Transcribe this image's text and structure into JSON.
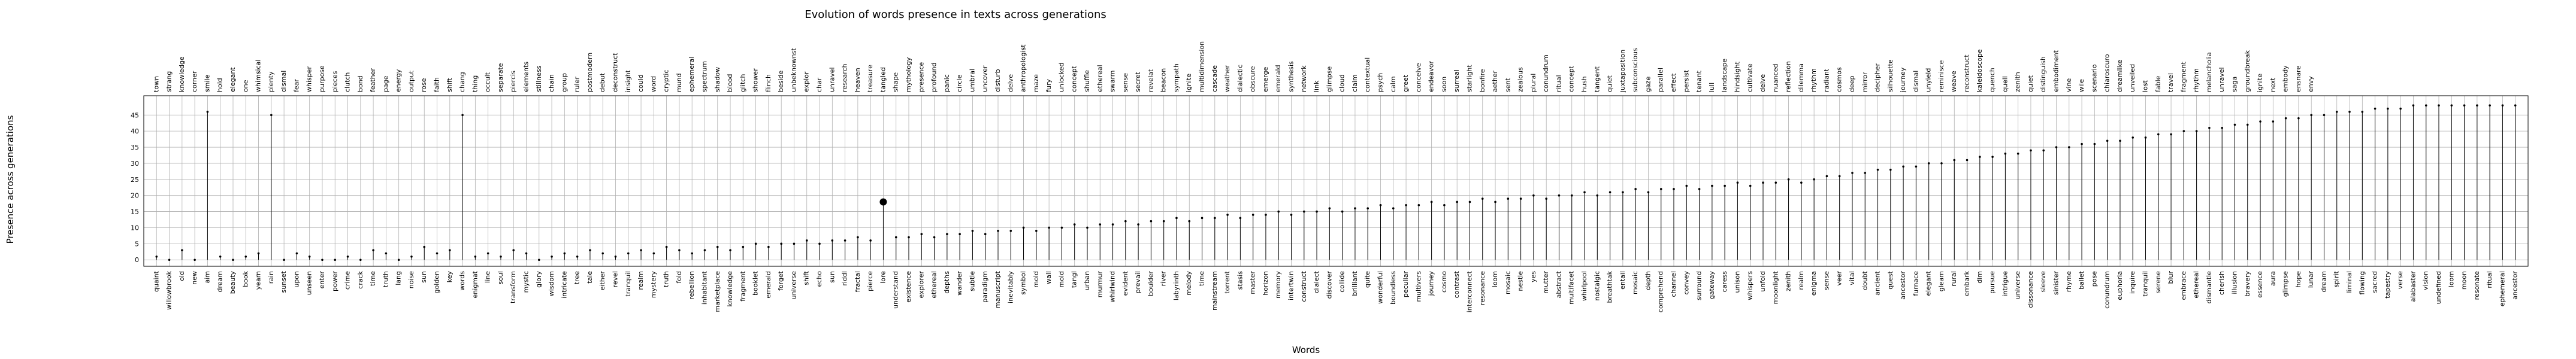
{
  "chart_data": {
    "type": "scatter",
    "title": "Evolution of words presence in texts across generations",
    "xlabel": "Words",
    "ylabel": "Presence across generations",
    "ylim": [
      -2,
      51
    ],
    "yticks": [
      0,
      5,
      10,
      15,
      20,
      25,
      30,
      35,
      40,
      45
    ],
    "grid": true,
    "legend": "none",
    "top_words": [
      "town",
      "strang",
      "knowledge",
      "corner",
      "smile",
      "hold",
      "elegant",
      "one",
      "whimsical",
      "plenty",
      "dismal",
      "fear",
      "whisper",
      "purpose",
      "pieces",
      "clutch",
      "bond",
      "feather",
      "page",
      "energy",
      "output",
      "rose",
      "faith",
      "shift",
      "chang",
      "thing",
      "occult",
      "separate",
      "piercis",
      "elements",
      "stillness",
      "chain",
      "group",
      "ruler",
      "postmodern",
      "debut",
      "deconstruct",
      "insight",
      "could",
      "word",
      "cryptic",
      "mund",
      "ephemeral",
      "spectrum",
      "shadow",
      "blood",
      "glitch",
      "shower",
      "flinch",
      "beside",
      "unbeknownst",
      "explor",
      "char",
      "unravel",
      "research",
      "heaven",
      "treasure",
      "tangled",
      "shape",
      "mythology",
      "presence",
      "profound",
      "panic",
      "circle",
      "umbral",
      "uncover",
      "disturb",
      "delve",
      "anthropologist",
      "maze",
      "fury",
      "unlocked",
      "concept",
      "shuffle",
      "ethereal",
      "swarm",
      "sense",
      "secret",
      "revelat",
      "beacon",
      "sympath",
      "ignite",
      "multidimension",
      "cascade",
      "weather",
      "dialectic",
      "obscure",
      "emerge",
      "emerald",
      "synthesis",
      "network",
      "link",
      "glimpse",
      "cloud",
      "claim",
      "contextual",
      "psych",
      "calm",
      "greet",
      "conceive",
      "endeavor",
      "soon",
      "surreal",
      "starlight",
      "bonfire",
      "aether",
      "sent",
      "zealous",
      "plural",
      "conundrum",
      "ritual",
      "concept",
      "hush",
      "tangent",
      "quiet",
      "juxtaposition",
      "subconscious",
      "gaze",
      "parallel",
      "effect",
      "persist",
      "tenant",
      "lull",
      "landscape",
      "hindsight",
      "cultivate",
      "delve",
      "nuanced",
      "reflection",
      "dilemma",
      "rhythm",
      "radiant",
      "cosmos",
      "deep",
      "mirror",
      "decipher",
      "silhouette",
      "journey",
      "dismal",
      "unyield",
      "reminisce",
      "weave",
      "reconstruct",
      "kaleidoscope",
      "quench",
      "quell",
      "zenith",
      "quiet",
      "distinguish",
      "embodiment",
      "vine",
      "wile",
      "scenario",
      "chiaroscuro",
      "dreamlike",
      "unveiled",
      "lost",
      "fable",
      "travel",
      "fragment",
      "rhythm",
      "melancholia",
      "unravel",
      "saga",
      "groundbreak",
      "ignite",
      "next",
      "embody",
      "ensnare",
      "envy"
    ],
    "bottom_words": [
      "quaint",
      "willowbrook",
      "old",
      "new",
      "aim",
      "dream",
      "beauty",
      "book",
      "yearn",
      "rain",
      "sunset",
      "upon",
      "unseen",
      "enter",
      "power",
      "crime",
      "crack",
      "time",
      "truth",
      "lang",
      "noise",
      "sun",
      "golden",
      "key",
      "words",
      "enigmat",
      "line",
      "soul",
      "transform",
      "mystic",
      "glory",
      "wisdom",
      "intricate",
      "tree",
      "tale",
      "either",
      "revel",
      "tranquil",
      "realm",
      "mystery",
      "truth",
      "fold",
      "rebellion",
      "inhabitant",
      "marketplace",
      "knowledge",
      "fragment",
      "booklet",
      "emerald",
      "forget",
      "universe",
      "shift",
      "echo",
      "sun",
      "riddl",
      "fractal",
      "pierce",
      "lore",
      "understand",
      "existence",
      "explorer",
      "ethereal",
      "depths",
      "wander",
      "subtle",
      "paradigm",
      "manuscript",
      "inevitably",
      "symbol",
      "mold",
      "wall",
      "mold",
      "tangl",
      "urban",
      "murmur",
      "whirlwind",
      "evident",
      "prevail",
      "boulder",
      "river",
      "labyrinth",
      "melody",
      "time",
      "mainstream",
      "torrent",
      "stasis",
      "master",
      "horizon",
      "memory",
      "intertwin",
      "construct",
      "dialect",
      "discover",
      "collide",
      "brilliant",
      "quite",
      "wonderful",
      "boundless",
      "peculiar",
      "multivers",
      "journey",
      "cosmo",
      "contrast",
      "interconnect",
      "resonance",
      "loom",
      "mosaic",
      "nestle",
      "yes",
      "mutter",
      "abstract",
      "multifacet",
      "whirlpool",
      "nostalgic",
      "breathtak",
      "entail",
      "mosaic",
      "depth",
      "comprehend",
      "channel",
      "convey",
      "surround",
      "gateway",
      "caress",
      "unison",
      "whispers",
      "unfold",
      "moonlight",
      "zenith",
      "realm",
      "enigma",
      "sense",
      "veer",
      "vital",
      "doubt",
      "ancient",
      "quest",
      "ancestor",
      "furnace",
      "elegant",
      "gleam",
      "rural",
      "embark",
      "dim",
      "pursue",
      "intrigue",
      "universe",
      "dissonance",
      "sleeve",
      "sinister",
      "rhyme",
      "ballet",
      "pose",
      "conundrum",
      "euphoria",
      "inquire",
      "tranquil",
      "serene",
      "blur",
      "embrace",
      "ethereal",
      "dismantle",
      "cherish",
      "illusion",
      "bravery",
      "essence",
      "aura",
      "glimpse",
      "hope",
      "lunar",
      "dream",
      "spirit",
      "liminal",
      "flowing",
      "sacred",
      "tapestry",
      "verse",
      "alabaster",
      "vision",
      "undefined",
      "loom",
      "moon",
      "resonate",
      "ritual",
      "ephemeral",
      "ancestor",
      "dwelling",
      "echo",
      "quiet",
      "forest",
      "shadow",
      "harmony"
    ],
    "series": [
      {
        "name": "",
        "values": [
          [
            1,
            1
          ],
          [
            2,
            0
          ],
          [
            3,
            3
          ],
          [
            4,
            0
          ],
          [
            5,
            46
          ],
          [
            6,
            1
          ],
          [
            7,
            0
          ],
          [
            8,
            1
          ],
          [
            9,
            2
          ],
          [
            10,
            45
          ],
          [
            11,
            0
          ],
          [
            12,
            2
          ],
          [
            13,
            1
          ],
          [
            14,
            0
          ],
          [
            15,
            0
          ],
          [
            16,
            1
          ],
          [
            17,
            0
          ],
          [
            18,
            3
          ],
          [
            19,
            2
          ],
          [
            20,
            0
          ],
          [
            21,
            1
          ],
          [
            22,
            4
          ],
          [
            23,
            2
          ],
          [
            24,
            3
          ],
          [
            25,
            45
          ],
          [
            26,
            1
          ],
          [
            27,
            2
          ],
          [
            28,
            1
          ],
          [
            29,
            3
          ],
          [
            30,
            2
          ],
          [
            31,
            0
          ],
          [
            32,
            1
          ],
          [
            33,
            2
          ],
          [
            34,
            1
          ],
          [
            35,
            3
          ],
          [
            36,
            2
          ],
          [
            37,
            1
          ],
          [
            38,
            2
          ],
          [
            39,
            3
          ],
          [
            40,
            2
          ],
          [
            41,
            4
          ],
          [
            42,
            3
          ],
          [
            43,
            2
          ],
          [
            44,
            3
          ],
          [
            45,
            4
          ],
          [
            46,
            3
          ],
          [
            47,
            4
          ],
          [
            48,
            5
          ],
          [
            49,
            4
          ],
          [
            50,
            5
          ],
          [
            51,
            5
          ],
          [
            52,
            6
          ],
          [
            53,
            5
          ],
          [
            54,
            6
          ],
          [
            55,
            6
          ],
          [
            56,
            7
          ],
          [
            57,
            6
          ],
          [
            58,
            18
          ],
          [
            59,
            7
          ],
          [
            60,
            7
          ],
          [
            61,
            8
          ],
          [
            62,
            7
          ],
          [
            63,
            8
          ],
          [
            64,
            8
          ],
          [
            65,
            9
          ],
          [
            66,
            8
          ],
          [
            67,
            9
          ],
          [
            68,
            9
          ],
          [
            69,
            10
          ],
          [
            70,
            9
          ],
          [
            71,
            10
          ],
          [
            72,
            10
          ],
          [
            73,
            11
          ],
          [
            74,
            10
          ],
          [
            75,
            11
          ],
          [
            76,
            11
          ],
          [
            77,
            12
          ],
          [
            78,
            11
          ],
          [
            79,
            12
          ],
          [
            80,
            12
          ],
          [
            81,
            13
          ],
          [
            82,
            12
          ],
          [
            83,
            13
          ],
          [
            84,
            13
          ],
          [
            85,
            14
          ],
          [
            86,
            13
          ],
          [
            87,
            14
          ],
          [
            88,
            14
          ],
          [
            89,
            15
          ],
          [
            90,
            14
          ],
          [
            91,
            15
          ],
          [
            92,
            15
          ],
          [
            93,
            16
          ],
          [
            94,
            15
          ],
          [
            95,
            16
          ],
          [
            96,
            16
          ],
          [
            97,
            17
          ],
          [
            98,
            16
          ],
          [
            99,
            17
          ],
          [
            100,
            17
          ],
          [
            101,
            18
          ],
          [
            102,
            17
          ],
          [
            103,
            18
          ],
          [
            104,
            18
          ],
          [
            105,
            19
          ],
          [
            106,
            18
          ],
          [
            107,
            19
          ],
          [
            108,
            19
          ],
          [
            109,
            20
          ],
          [
            110,
            19
          ],
          [
            111,
            20
          ],
          [
            112,
            20
          ],
          [
            113,
            21
          ],
          [
            114,
            20
          ],
          [
            115,
            21
          ],
          [
            116,
            21
          ],
          [
            117,
            22
          ],
          [
            118,
            21
          ],
          [
            119,
            22
          ],
          [
            120,
            22
          ],
          [
            121,
            23
          ],
          [
            122,
            22
          ],
          [
            123,
            23
          ],
          [
            124,
            23
          ],
          [
            125,
            24
          ],
          [
            126,
            23
          ],
          [
            127,
            24
          ],
          [
            128,
            24
          ],
          [
            129,
            25
          ],
          [
            130,
            24
          ],
          [
            131,
            25
          ],
          [
            132,
            26
          ],
          [
            133,
            26
          ],
          [
            134,
            27
          ],
          [
            135,
            27
          ],
          [
            136,
            28
          ],
          [
            137,
            28
          ],
          [
            138,
            29
          ],
          [
            139,
            29
          ],
          [
            140,
            30
          ],
          [
            141,
            30
          ],
          [
            142,
            31
          ],
          [
            143,
            31
          ],
          [
            144,
            32
          ],
          [
            145,
            32
          ],
          [
            146,
            33
          ],
          [
            147,
            33
          ],
          [
            148,
            34
          ],
          [
            149,
            34
          ],
          [
            150,
            35
          ],
          [
            151,
            35
          ],
          [
            152,
            36
          ],
          [
            153,
            36
          ],
          [
            154,
            37
          ],
          [
            155,
            37
          ],
          [
            156,
            38
          ],
          [
            157,
            38
          ],
          [
            158,
            39
          ],
          [
            159,
            39
          ],
          [
            160,
            40
          ],
          [
            161,
            40
          ],
          [
            162,
            41
          ],
          [
            163,
            41
          ],
          [
            164,
            42
          ],
          [
            165,
            42
          ],
          [
            166,
            43
          ],
          [
            167,
            43
          ],
          [
            168,
            44
          ],
          [
            169,
            44
          ],
          [
            170,
            45
          ],
          [
            171,
            45
          ],
          [
            172,
            46
          ],
          [
            173,
            46
          ],
          [
            174,
            46
          ],
          [
            175,
            47
          ],
          [
            176,
            47
          ],
          [
            177,
            47
          ],
          [
            178,
            48
          ],
          [
            179,
            48
          ],
          [
            180,
            48
          ],
          [
            181,
            48
          ],
          [
            182,
            48
          ],
          [
            183,
            48
          ],
          [
            184,
            48
          ],
          [
            185,
            48
          ],
          [
            186,
            48
          ]
        ]
      }
    ]
  }
}
